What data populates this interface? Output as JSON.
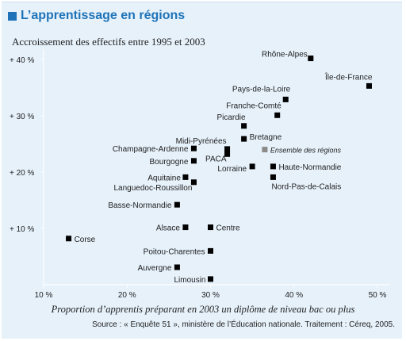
{
  "title": "L’apprentissage en régions",
  "chart_data": {
    "type": "scatter",
    "title": "",
    "subtitle": "Accroissement des effectifs entre 1995 et 2003",
    "xlabel": "Proportion d’apprentis préparant en 2003 un diplôme de niveau bac ou plus",
    "source": "Source : « Enquête 51 », ministère de l’Éducation nationale. Traitement : Céreq, 2005.",
    "xlim": [
      10,
      50
    ],
    "ylim": [
      0,
      42
    ],
    "x_ticks": [
      "10 %",
      "20 %",
      "30 %",
      "40 %",
      "50 %"
    ],
    "y_ticks": [
      "+ 10 %",
      "+ 20 %",
      "+ 30 %",
      "+ 40 %"
    ],
    "grid": false,
    "colors": {
      "point": "#000000",
      "reference": "#8a8a8a",
      "background": "#e6f1fa",
      "axis": "#ffffff"
    },
    "points": [
      {
        "label": "Rhône-Alpes",
        "x": 42.0,
        "y": 40.2
      },
      {
        "label": "Île-de-France",
        "x": 49.0,
        "y": 35.3
      },
      {
        "label": "Pays-de-la-Loire",
        "x": 39.0,
        "y": 32.9
      },
      {
        "label": "Franche-Comté",
        "x": 38.0,
        "y": 30.1
      },
      {
        "label": "Picardie",
        "x": 34.0,
        "y": 28.2
      },
      {
        "label": "Bretagne",
        "x": 34.0,
        "y": 25.9
      },
      {
        "label": "Midi-Pyrénées",
        "x": 32.0,
        "y": 24.1
      },
      {
        "label": "PACA",
        "x": 32.0,
        "y": 23.2
      },
      {
        "label": "Ensemble des régions",
        "x": 36.5,
        "y": 24.0,
        "reference": true
      },
      {
        "label": "Champagne-Ardenne",
        "x": 28.0,
        "y": 24.2
      },
      {
        "label": "Bourgogne",
        "x": 28.0,
        "y": 22.0
      },
      {
        "label": "Lorraine",
        "x": 35.0,
        "y": 21.0
      },
      {
        "label": "Haute-Normandie",
        "x": 37.5,
        "y": 21.0
      },
      {
        "label": "Nord-Pas-de-Calais",
        "x": 37.5,
        "y": 19.1
      },
      {
        "label": "Aquitaine",
        "x": 27.0,
        "y": 19.1
      },
      {
        "label": "Languedoc-Roussillon",
        "x": 28.0,
        "y": 18.2
      },
      {
        "label": "Basse-Normandie",
        "x": 26.0,
        "y": 14.2
      },
      {
        "label": "Alsace",
        "x": 27.0,
        "y": 10.2
      },
      {
        "label": "Centre",
        "x": 30.0,
        "y": 10.2
      },
      {
        "label": "Corse",
        "x": 13.0,
        "y": 8.2
      },
      {
        "label": "Poitou-Charentes",
        "x": 30.0,
        "y": 6.0
      },
      {
        "label": "Auvergne",
        "x": 26.0,
        "y": 3.1
      },
      {
        "label": "Limousin",
        "x": 30.0,
        "y": 1.0
      }
    ]
  }
}
